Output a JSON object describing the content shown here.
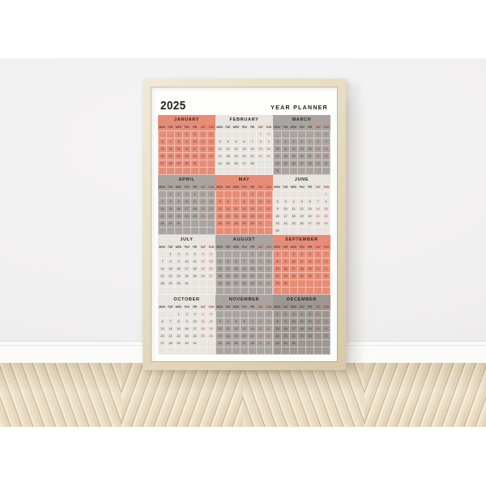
{
  "poster": {
    "year": "2025",
    "title": "YEAR PLANNER",
    "dow": [
      "MON",
      "TUE",
      "WED",
      "THU",
      "FRI",
      "SAT",
      "SUN"
    ],
    "months": [
      {
        "name": "JANUARY",
        "theme": "salmon",
        "weeks": [
          [
            "",
            "",
            "1",
            "2",
            "3",
            "4",
            "5"
          ],
          [
            "6",
            "7",
            "8",
            "9",
            "10",
            "11",
            "12"
          ],
          [
            "13",
            "14",
            "15",
            "16",
            "17",
            "18",
            "19"
          ],
          [
            "20",
            "21",
            "22",
            "23",
            "24",
            "25",
            "26"
          ],
          [
            "27",
            "28",
            "29",
            "30",
            "31",
            "",
            ""
          ],
          [
            "",
            "",
            "",
            "",
            "",
            "",
            ""
          ]
        ]
      },
      {
        "name": "FEBRUARY",
        "theme": "cream",
        "weeks": [
          [
            "",
            "",
            "",
            "",
            "",
            "1",
            "2"
          ],
          [
            "3",
            "4",
            "5",
            "6",
            "7",
            "8",
            "9"
          ],
          [
            "10",
            "11",
            "12",
            "13",
            "14",
            "15",
            "16"
          ],
          [
            "17",
            "18",
            "19",
            "20",
            "21",
            "22",
            "23"
          ],
          [
            "24",
            "25",
            "26",
            "27",
            "28",
            "",
            ""
          ],
          [
            "",
            "",
            "",
            "",
            "",
            "",
            ""
          ]
        ]
      },
      {
        "name": "MARCH",
        "theme": "gray",
        "weeks": [
          [
            "",
            "",
            "",
            "",
            "",
            "1",
            "2"
          ],
          [
            "3",
            "4",
            "5",
            "6",
            "7",
            "8",
            "9"
          ],
          [
            "10",
            "11",
            "12",
            "13",
            "14",
            "15",
            "16"
          ],
          [
            "17",
            "18",
            "19",
            "20",
            "21",
            "22",
            "23"
          ],
          [
            "24",
            "25",
            "26",
            "27",
            "28",
            "29",
            "30"
          ],
          [
            "31",
            "",
            "",
            "",
            "",
            "",
            ""
          ]
        ]
      },
      {
        "name": "APRIL",
        "theme": "gray",
        "weeks": [
          [
            "",
            "1",
            "2",
            "3",
            "4",
            "5",
            "6"
          ],
          [
            "7",
            "8",
            "9",
            "10",
            "11",
            "12",
            "13"
          ],
          [
            "14",
            "15",
            "16",
            "17",
            "18",
            "19",
            "20"
          ],
          [
            "21",
            "22",
            "23",
            "24",
            "25",
            "26",
            "27"
          ],
          [
            "28",
            "29",
            "30",
            "",
            "",
            "",
            ""
          ],
          [
            "",
            "",
            "",
            "",
            "",
            "",
            ""
          ]
        ]
      },
      {
        "name": "MAY",
        "theme": "salmon",
        "weeks": [
          [
            "",
            "",
            "",
            "1",
            "2",
            "3",
            "4"
          ],
          [
            "5",
            "6",
            "7",
            "8",
            "9",
            "10",
            "11"
          ],
          [
            "12",
            "13",
            "14",
            "15",
            "16",
            "17",
            "18"
          ],
          [
            "19",
            "20",
            "21",
            "22",
            "23",
            "24",
            "25"
          ],
          [
            "26",
            "27",
            "28",
            "29",
            "30",
            "31",
            ""
          ],
          [
            "",
            "",
            "",
            "",
            "",
            "",
            ""
          ]
        ]
      },
      {
        "name": "JUNE",
        "theme": "cream",
        "weeks": [
          [
            "",
            "",
            "",
            "",
            "",
            "",
            "1"
          ],
          [
            "2",
            "3",
            "4",
            "5",
            "6",
            "7",
            "8"
          ],
          [
            "9",
            "10",
            "11",
            "12",
            "13",
            "14",
            "15"
          ],
          [
            "16",
            "17",
            "18",
            "19",
            "20",
            "21",
            "22"
          ],
          [
            "23",
            "24",
            "25",
            "26",
            "27",
            "28",
            "29"
          ],
          [
            "30",
            "",
            "",
            "",
            "",
            "",
            ""
          ]
        ]
      },
      {
        "name": "JULY",
        "theme": "cream",
        "weeks": [
          [
            "",
            "1",
            "2",
            "3",
            "4",
            "5",
            "6"
          ],
          [
            "7",
            "8",
            "9",
            "10",
            "11",
            "12",
            "13"
          ],
          [
            "14",
            "15",
            "16",
            "17",
            "18",
            "19",
            "20"
          ],
          [
            "21",
            "22",
            "23",
            "24",
            "25",
            "26",
            "27"
          ],
          [
            "28",
            "29",
            "30",
            "31",
            "",
            "",
            ""
          ],
          [
            "",
            "",
            "",
            "",
            "",
            "",
            ""
          ]
        ]
      },
      {
        "name": "AUGUST",
        "theme": "gray",
        "weeks": [
          [
            "",
            "",
            "",
            "",
            "1",
            "2",
            "3"
          ],
          [
            "4",
            "5",
            "6",
            "7",
            "8",
            "9",
            "10"
          ],
          [
            "11",
            "12",
            "13",
            "14",
            "15",
            "16",
            "17"
          ],
          [
            "18",
            "19",
            "20",
            "21",
            "22",
            "23",
            "24"
          ],
          [
            "25",
            "26",
            "27",
            "28",
            "29",
            "30",
            "31"
          ],
          [
            "",
            "",
            "",
            "",
            "",
            "",
            ""
          ]
        ]
      },
      {
        "name": "SEPTEMBER",
        "theme": "salmon",
        "weeks": [
          [
            "1",
            "2",
            "3",
            "4",
            "5",
            "6",
            "7"
          ],
          [
            "8",
            "9",
            "10",
            "11",
            "12",
            "13",
            "14"
          ],
          [
            "15",
            "16",
            "17",
            "18",
            "19",
            "20",
            "21"
          ],
          [
            "22",
            "23",
            "24",
            "25",
            "26",
            "27",
            "28"
          ],
          [
            "29",
            "30",
            "",
            "",
            "",
            "",
            ""
          ],
          [
            "",
            "",
            "",
            "",
            "",
            "",
            ""
          ]
        ]
      },
      {
        "name": "OCTOBER",
        "theme": "cream",
        "weeks": [
          [
            "",
            "",
            "1",
            "2",
            "3",
            "4",
            "5"
          ],
          [
            "6",
            "7",
            "8",
            "9",
            "10",
            "11",
            "12"
          ],
          [
            "13",
            "14",
            "15",
            "16",
            "17",
            "18",
            "19"
          ],
          [
            "20",
            "21",
            "22",
            "23",
            "24",
            "25",
            "26"
          ],
          [
            "27",
            "28",
            "29",
            "30",
            "31",
            "",
            ""
          ],
          [
            "",
            "",
            "",
            "",
            "",
            "",
            ""
          ]
        ]
      },
      {
        "name": "NOVEMBER",
        "theme": "gray",
        "weeks": [
          [
            "",
            "",
            "",
            "",
            "",
            "1",
            "2"
          ],
          [
            "3",
            "4",
            "5",
            "6",
            "7",
            "8",
            "9"
          ],
          [
            "10",
            "11",
            "12",
            "13",
            "14",
            "15",
            "16"
          ],
          [
            "17",
            "18",
            "19",
            "20",
            "21",
            "22",
            "23"
          ],
          [
            "24",
            "25",
            "26",
            "27",
            "28",
            "29",
            "30"
          ],
          [
            "",
            "",
            "",
            "",
            "",
            "",
            ""
          ]
        ]
      },
      {
        "name": "DECEMBER",
        "theme": "gray_dark",
        "weeks": [
          [
            "1",
            "2",
            "3",
            "4",
            "5",
            "6",
            "7"
          ],
          [
            "8",
            "9",
            "10",
            "11",
            "12",
            "13",
            "14"
          ],
          [
            "15",
            "16",
            "17",
            "18",
            "19",
            "20",
            "21"
          ],
          [
            "22",
            "23",
            "24",
            "25",
            "26",
            "27",
            "28"
          ],
          [
            "29",
            "30",
            "31",
            "",
            "",
            "",
            ""
          ],
          [
            "",
            "",
            "",
            "",
            "",
            "",
            ""
          ]
        ]
      }
    ],
    "colors": {
      "salmon": "#e78d77",
      "cream": "#e8e4df",
      "gray": "#a9a4a0",
      "gray_dark": "#9c9792",
      "weekend_red": "#b23a28"
    }
  },
  "scene": {
    "wall": "#f1f0f0",
    "baseboard": "#fbfbfa",
    "floor": "#ead9bf",
    "frame_wood": "#e6dcc3",
    "poster": "#fdfdfc"
  }
}
